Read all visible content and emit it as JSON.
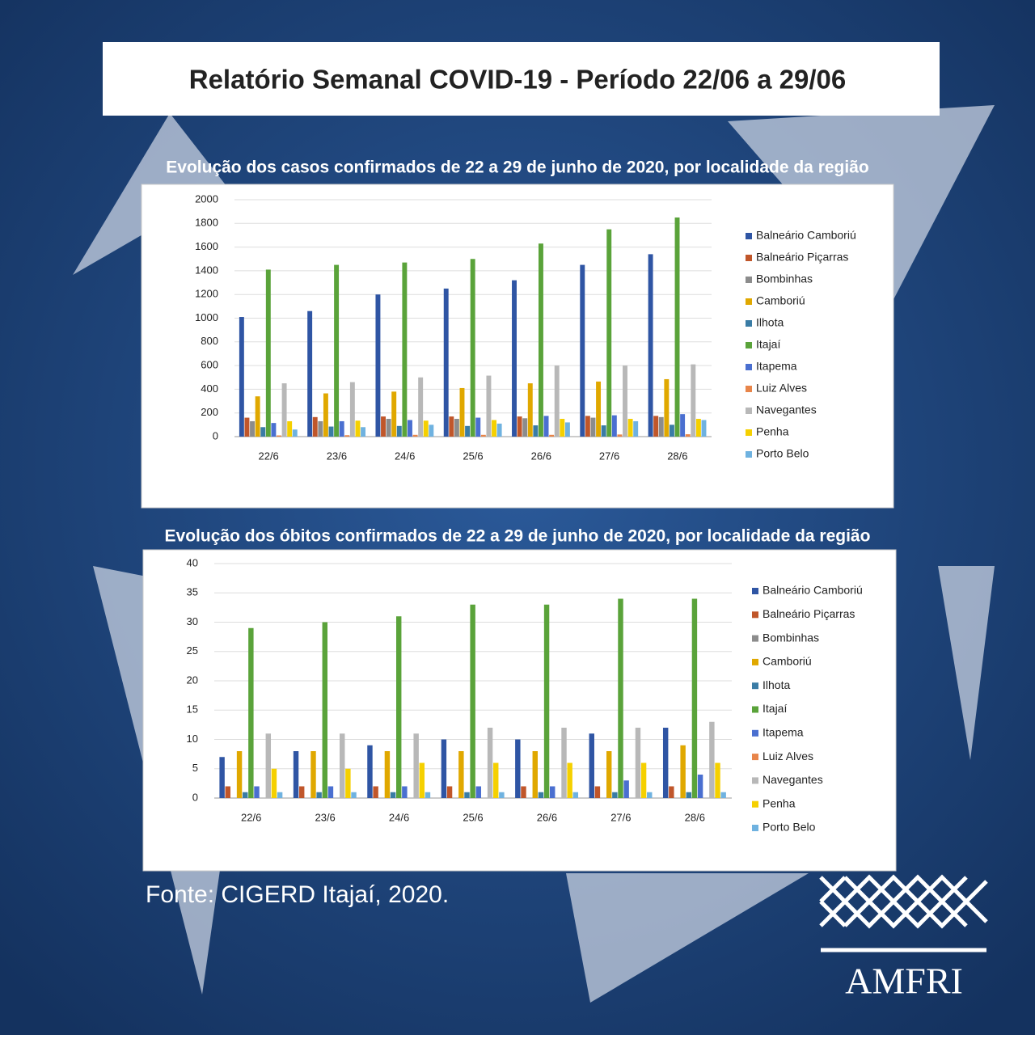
{
  "header": {
    "title": "Relatório Semanal COVID-19 - Período 22/06 a 29/06"
  },
  "chart_data": [
    {
      "type": "bar",
      "title": "Evolução dos casos confirmados de 22 a 29 de junho de 2020, por localidade da região",
      "categories": [
        "22/6",
        "23/6",
        "24/6",
        "25/6",
        "26/6",
        "27/6",
        "28/6"
      ],
      "ylim": [
        0,
        2000
      ],
      "yticks": [
        0,
        200,
        400,
        600,
        800,
        1000,
        1200,
        1400,
        1600,
        1800,
        2000
      ],
      "grid": true,
      "series": [
        {
          "name": "Balneário Camboriú",
          "color": "#2f55a4",
          "values": [
            1010,
            1060,
            1200,
            1250,
            1320,
            1450,
            1540
          ]
        },
        {
          "name": "Balneário Piçarras",
          "color": "#c0562a",
          "values": [
            160,
            165,
            170,
            170,
            170,
            175,
            175
          ]
        },
        {
          "name": "Bombinhas",
          "color": "#8c8c8c",
          "values": [
            130,
            130,
            150,
            150,
            155,
            160,
            165
          ]
        },
        {
          "name": "Camboriú",
          "color": "#e0a800",
          "values": [
            340,
            365,
            380,
            410,
            450,
            465,
            485
          ]
        },
        {
          "name": "Ilhota",
          "color": "#3a7ca5",
          "values": [
            80,
            85,
            90,
            90,
            95,
            95,
            100
          ]
        },
        {
          "name": "Itajaí",
          "color": "#5aa33a",
          "values": [
            1410,
            1450,
            1470,
            1500,
            1630,
            1750,
            1850
          ]
        },
        {
          "name": "Itapema",
          "color": "#4a6fd0",
          "values": [
            115,
            130,
            140,
            160,
            175,
            180,
            190
          ]
        },
        {
          "name": "Luiz Alves",
          "color": "#e8854a",
          "values": [
            10,
            12,
            15,
            15,
            15,
            18,
            20
          ]
        },
        {
          "name": "Navegantes",
          "color": "#b8b8b8",
          "values": [
            450,
            460,
            500,
            515,
            600,
            600,
            610
          ]
        },
        {
          "name": "Penha",
          "color": "#f5d000",
          "values": [
            130,
            135,
            135,
            140,
            150,
            150,
            150
          ]
        },
        {
          "name": "Porto Belo",
          "color": "#6fb2e0",
          "values": [
            60,
            80,
            100,
            110,
            120,
            130,
            140
          ]
        }
      ]
    },
    {
      "type": "bar",
      "title": "Evolução dos óbitos confirmados de 22 a 29 de junho de 2020, por localidade da região",
      "categories": [
        "22/6",
        "23/6",
        "24/6",
        "25/6",
        "26/6",
        "27/6",
        "28/6"
      ],
      "ylim": [
        0,
        40
      ],
      "yticks": [
        0,
        5,
        10,
        15,
        20,
        25,
        30,
        35,
        40
      ],
      "grid": true,
      "series": [
        {
          "name": "Balneário Camboriú",
          "color": "#2f55a4",
          "values": [
            7,
            8,
            9,
            10,
            10,
            11,
            12
          ]
        },
        {
          "name": "Balneário Piçarras",
          "color": "#c0562a",
          "values": [
            2,
            2,
            2,
            2,
            2,
            2,
            2
          ]
        },
        {
          "name": "Bombinhas",
          "color": "#8c8c8c",
          "values": [
            0,
            0,
            0,
            0,
            0,
            0,
            0
          ]
        },
        {
          "name": "Camboriú",
          "color": "#e0a800",
          "values": [
            8,
            8,
            8,
            8,
            8,
            8,
            9
          ]
        },
        {
          "name": "Ilhota",
          "color": "#3a7ca5",
          "values": [
            1,
            1,
            1,
            1,
            1,
            1,
            1
          ]
        },
        {
          "name": "Itajaí",
          "color": "#5aa33a",
          "values": [
            29,
            30,
            31,
            33,
            33,
            34,
            34
          ]
        },
        {
          "name": "Itapema",
          "color": "#4a6fd0",
          "values": [
            2,
            2,
            2,
            2,
            2,
            3,
            4
          ]
        },
        {
          "name": "Luiz Alves",
          "color": "#e8854a",
          "values": [
            0,
            0,
            0,
            0,
            0,
            0,
            0
          ]
        },
        {
          "name": "Navegantes",
          "color": "#b8b8b8",
          "values": [
            11,
            11,
            11,
            12,
            12,
            12,
            13
          ]
        },
        {
          "name": "Penha",
          "color": "#f5d000",
          "values": [
            5,
            5,
            6,
            6,
            6,
            6,
            6
          ]
        },
        {
          "name": "Porto Belo",
          "color": "#6fb2e0",
          "values": [
            1,
            1,
            1,
            1,
            1,
            1,
            1
          ]
        }
      ]
    }
  ],
  "footer": {
    "source": "Fonte: CIGERD Itajaí, 2020.",
    "logo": "AMFRI"
  }
}
